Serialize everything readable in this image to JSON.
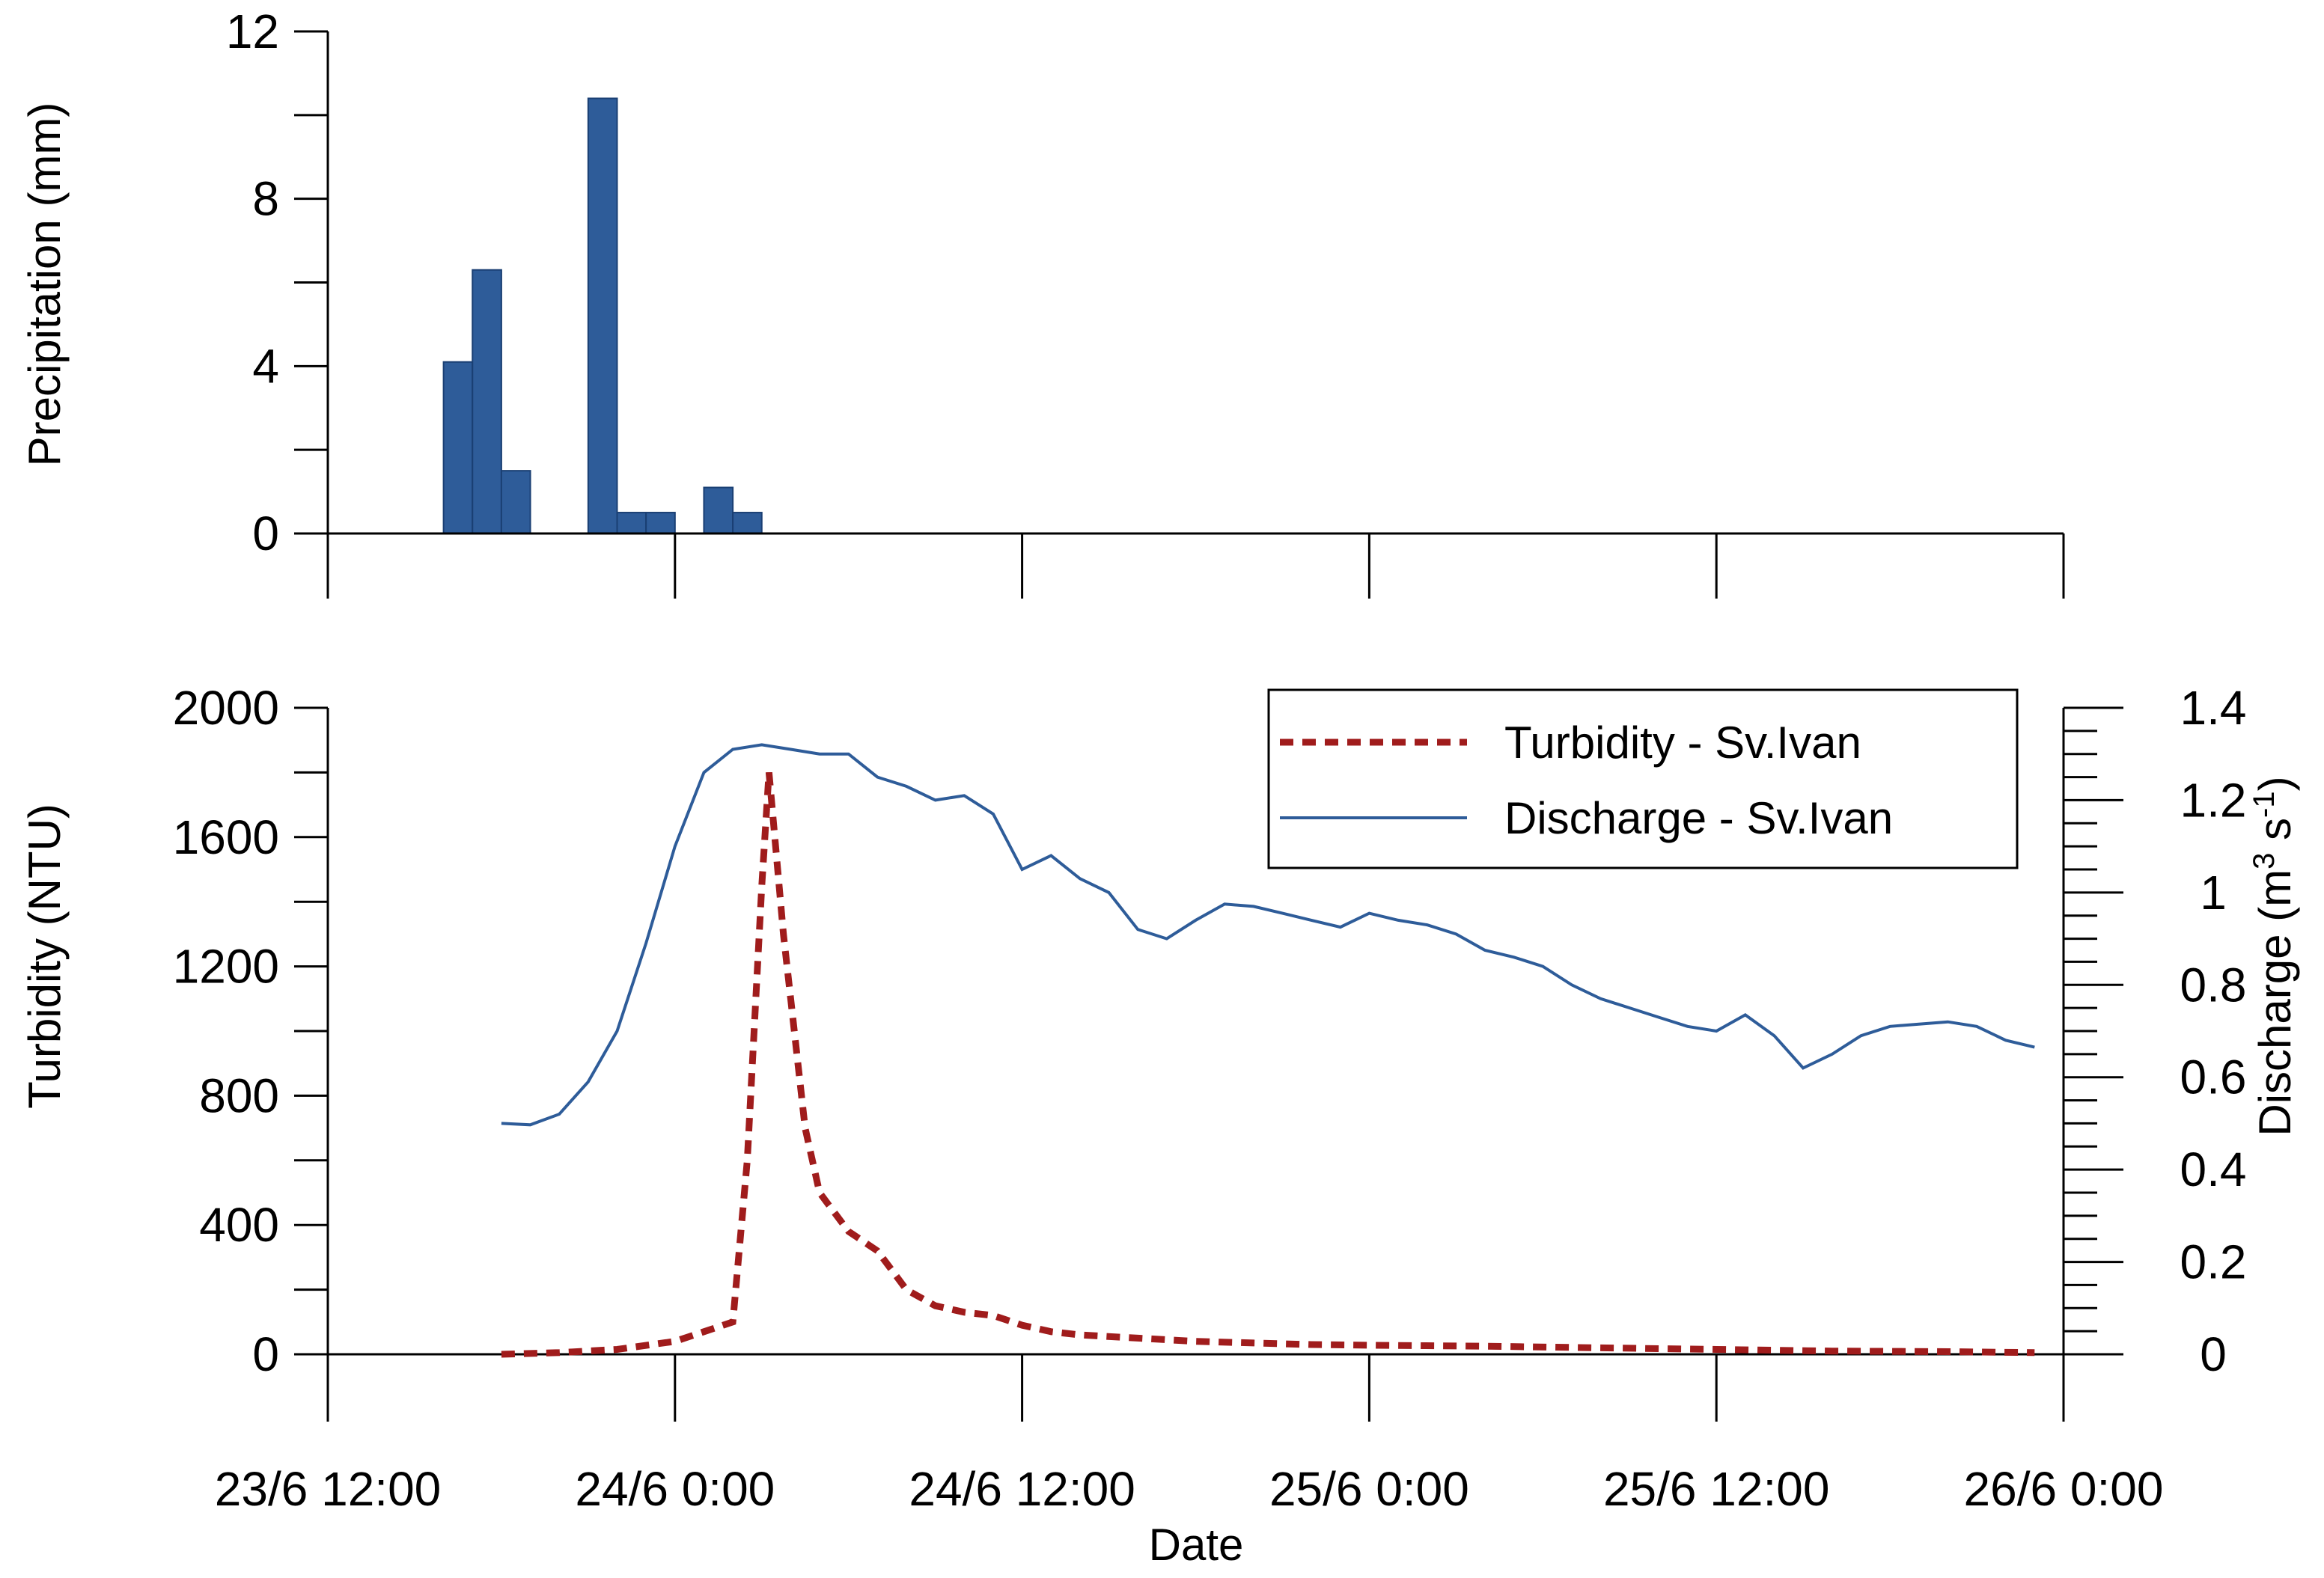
{
  "chart_data": [
    {
      "type": "bar",
      "panel": "top",
      "ylabel": "Precipitation (mm)",
      "ylim": [
        0,
        12
      ],
      "yticks": [
        0,
        4,
        8,
        12
      ],
      "ytick_labels": [
        "0",
        "4",
        "8",
        "12"
      ],
      "x_unit": "hours",
      "bar_width_hours": 1,
      "bars": [
        {
          "start": "23/6 16:00",
          "value": 4.1
        },
        {
          "start": "23/6 17:00",
          "value": 6.3
        },
        {
          "start": "23/6 18:00",
          "value": 1.5
        },
        {
          "start": "23/6 21:00",
          "value": 10.4
        },
        {
          "start": "23/6 22:00",
          "value": 0.5
        },
        {
          "start": "23/6 23:00",
          "value": 0.5
        },
        {
          "start": "24/6 1:00",
          "value": 1.1
        },
        {
          "start": "24/6 2:00",
          "value": 0.5
        }
      ],
      "color": "#2e5c99"
    },
    {
      "type": "line",
      "panel": "bottom",
      "xlabel": "Date",
      "x_tick_labels": [
        "23/6 12:00",
        "24/6 0:00",
        "24/6 12:00",
        "25/6 0:00",
        "25/6 12:00",
        "26/6 0:00"
      ],
      "ylabel_left": "Turbidity (NTU)",
      "ylim_left": [
        0,
        2000
      ],
      "yticks_left": [
        "0",
        "400",
        "800",
        "1200",
        "1600",
        "2000"
      ],
      "ylabel_right_main": "Discharge (m",
      "ylabel_right_sup1": "3",
      "ylabel_right_mid": " s",
      "ylabel_right_sup2": "-1",
      "ylabel_right_end": ")",
      "ylim_right": [
        0,
        1.4
      ],
      "yticks_right": [
        "0",
        "0.2",
        "0.4",
        "0.6",
        "0.8",
        "1",
        "1.2",
        "1.4"
      ],
      "legend_position": "top-right",
      "series": [
        {
          "name": "Turbidity - Sv.Ivan",
          "axis": "left",
          "color": "#a01c1c",
          "style": "dashed",
          "points": [
            [
              "23/6 18:00",
              0
            ],
            [
              "23/6 20:00",
              5
            ],
            [
              "23/6 22:00",
              15
            ],
            [
              "24/6 0:00",
              40
            ],
            [
              "24/6 1:00",
              70
            ],
            [
              "24/6 2:00",
              100
            ],
            [
              "24/6 2:30",
              600
            ],
            [
              "24/6 3:00",
              1450
            ],
            [
              "24/6 3:15",
              1800
            ],
            [
              "24/6 3:30",
              1550
            ],
            [
              "24/6 3:45",
              1300
            ],
            [
              "24/6 4:00",
              1100
            ],
            [
              "24/6 4:30",
              700
            ],
            [
              "24/6 5:00",
              500
            ],
            [
              "24/6 6:00",
              380
            ],
            [
              "24/6 7:00",
              320
            ],
            [
              "24/6 8:00",
              200
            ],
            [
              "24/6 9:00",
              150
            ],
            [
              "24/6 10:00",
              130
            ],
            [
              "24/6 11:00",
              120
            ],
            [
              "24/6 12:00",
              90
            ],
            [
              "24/6 13:00",
              70
            ],
            [
              "24/6 14:00",
              60
            ],
            [
              "24/6 16:00",
              50
            ],
            [
              "24/6 18:00",
              40
            ],
            [
              "24/6 20:00",
              35
            ],
            [
              "24/6 22:00",
              30
            ],
            [
              "25/6 0:00",
              28
            ],
            [
              "25/6 4:00",
              25
            ],
            [
              "25/6 8:00",
              20
            ],
            [
              "25/6 12:00",
              15
            ],
            [
              "25/6 16:00",
              10
            ],
            [
              "25/6 20:00",
              8
            ],
            [
              "25/6 23:00",
              5
            ]
          ]
        },
        {
          "name": "Discharge - Sv.Ivan",
          "axis": "right",
          "color": "#2e5c99",
          "style": "solid",
          "points": [
            [
              "23/6 18:00",
              0.5
            ],
            [
              "23/6 19:00",
              0.497
            ],
            [
              "23/6 20:00",
              0.52
            ],
            [
              "23/6 21:00",
              0.59
            ],
            [
              "23/6 22:00",
              0.7
            ],
            [
              "23/6 23:00",
              0.89
            ],
            [
              "24/6 0:00",
              1.1
            ],
            [
              "24/6 1:00",
              1.26
            ],
            [
              "24/6 2:00",
              1.31
            ],
            [
              "24/6 3:00",
              1.32
            ],
            [
              "24/6 4:00",
              1.31
            ],
            [
              "24/6 5:00",
              1.3
            ],
            [
              "24/6 6:00",
              1.3
            ],
            [
              "24/6 7:00",
              1.25
            ],
            [
              "24/6 8:00",
              1.23
            ],
            [
              "24/6 9:00",
              1.2
            ],
            [
              "24/6 10:00",
              1.21
            ],
            [
              "24/6 11:00",
              1.17
            ],
            [
              "24/6 12:00",
              1.05
            ],
            [
              "24/6 13:00",
              1.08
            ],
            [
              "24/6 14:00",
              1.03
            ],
            [
              "24/6 15:00",
              1.0
            ],
            [
              "24/6 16:00",
              0.92
            ],
            [
              "24/6 17:00",
              0.9
            ],
            [
              "24/6 18:00",
              0.94
            ],
            [
              "24/6 19:00",
              0.975
            ],
            [
              "24/6 20:00",
              0.97
            ],
            [
              "24/6 21:00",
              0.955
            ],
            [
              "24/6 22:00",
              0.94
            ],
            [
              "24/6 23:00",
              0.925
            ],
            [
              "25/6 0:00",
              0.955
            ],
            [
              "25/6 1:00",
              0.94
            ],
            [
              "25/6 2:00",
              0.93
            ],
            [
              "25/6 3:00",
              0.91
            ],
            [
              "25/6 4:00",
              0.875
            ],
            [
              "25/6 5:00",
              0.86
            ],
            [
              "25/6 6:00",
              0.84
            ],
            [
              "25/6 7:00",
              0.8
            ],
            [
              "25/6 8:00",
              0.77
            ],
            [
              "25/6 9:00",
              0.75
            ],
            [
              "25/6 10:00",
              0.73
            ],
            [
              "25/6 11:00",
              0.71
            ],
            [
              "25/6 12:00",
              0.7
            ],
            [
              "25/6 13:00",
              0.735
            ],
            [
              "25/6 14:00",
              0.69
            ],
            [
              "25/6 15:00",
              0.62
            ],
            [
              "25/6 16:00",
              0.65
            ],
            [
              "25/6 17:00",
              0.69
            ],
            [
              "25/6 18:00",
              0.71
            ],
            [
              "25/6 19:00",
              0.715
            ],
            [
              "25/6 20:00",
              0.72
            ],
            [
              "25/6 21:00",
              0.71
            ],
            [
              "25/6 22:00",
              0.68
            ],
            [
              "25/6 23:00",
              0.665
            ]
          ]
        }
      ]
    }
  ]
}
